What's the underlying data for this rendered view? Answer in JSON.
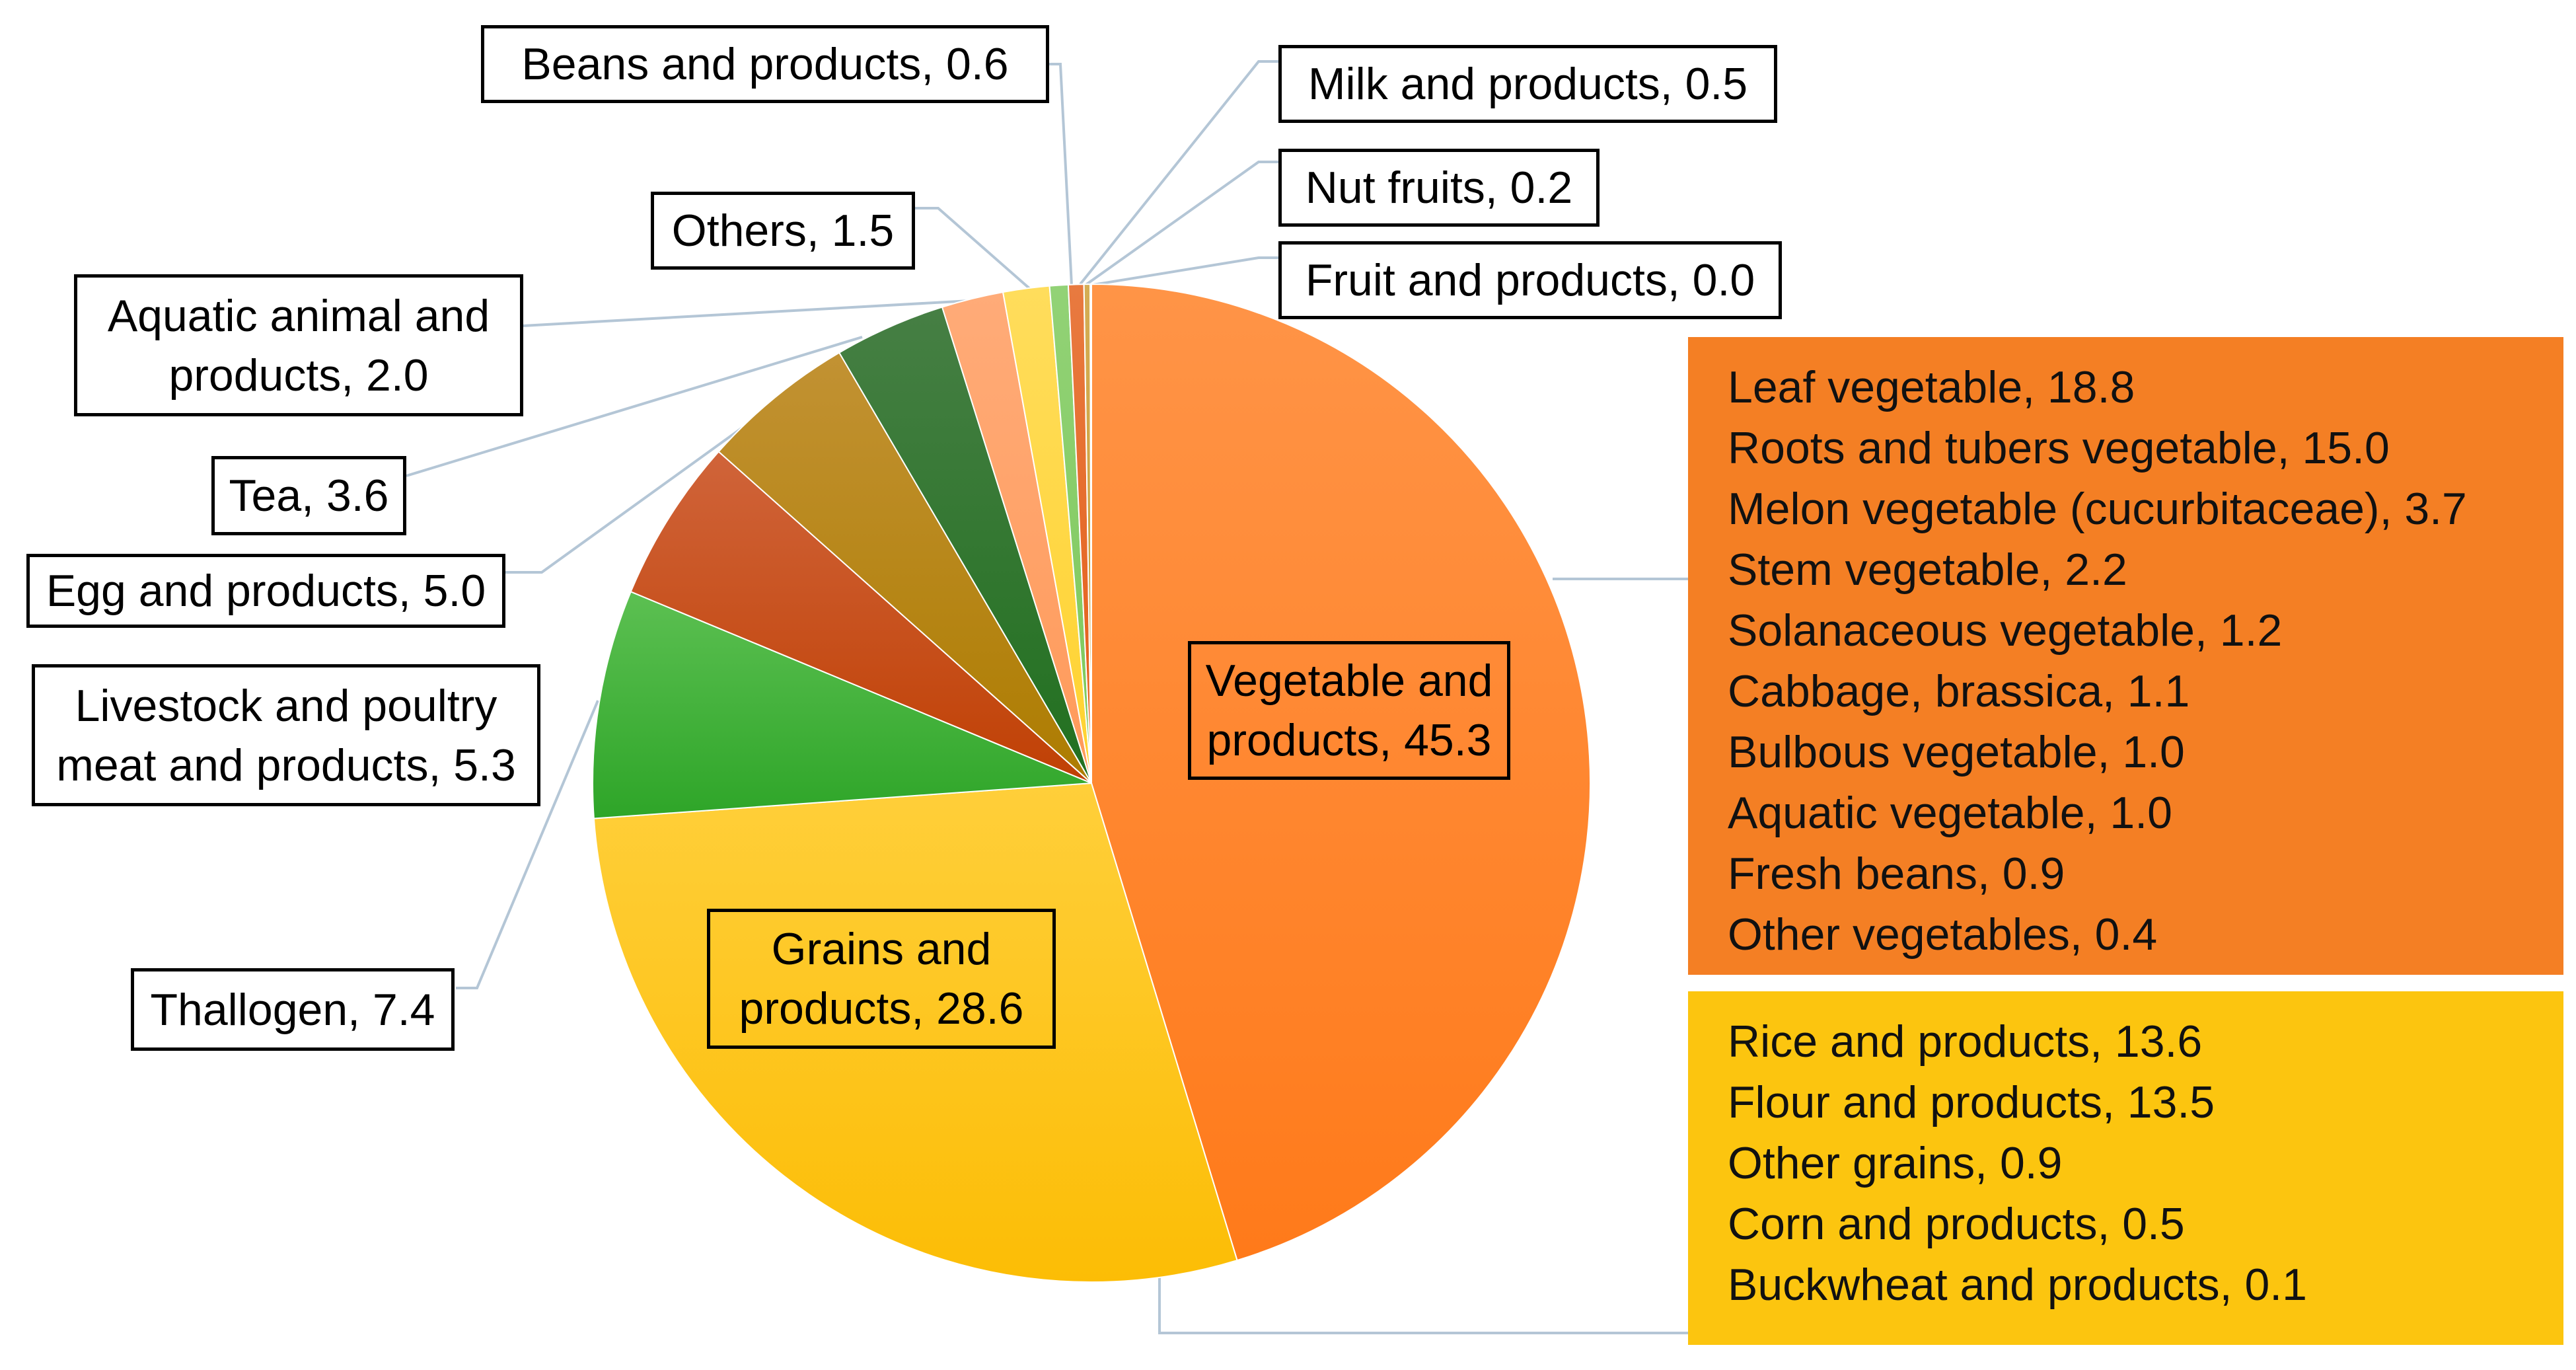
{
  "chart_data": {
    "type": "pie",
    "title": "",
    "start_angle_deg": 0,
    "direction": "clockwise",
    "slices": [
      {
        "label": "Vegetable and products",
        "value": 45.3,
        "color": "#ff7a1a",
        "light": "#ff9447"
      },
      {
        "label": "Grains and products",
        "value": 28.6,
        "color": "#fcbd05",
        "light": "#ffcf3a"
      },
      {
        "label": "Thallogen",
        "value": 7.4,
        "color": "#2ea528",
        "light": "#5cc052"
      },
      {
        "label": "Livestock and poultry meat and products",
        "value": 5.3,
        "color": "#c04004",
        "light": "#d0643a"
      },
      {
        "label": "Egg and products",
        "value": 5.0,
        "color": "#ad7c00",
        "light": "#c29233"
      },
      {
        "label": "Tea",
        "value": 3.6,
        "color": "#21701f",
        "light": "#467f44"
      },
      {
        "label": "Aquatic animal and products",
        "value": 2.0,
        "color": "#ff9a5a",
        "light": "#ffab78"
      },
      {
        "label": "Others",
        "value": 1.5,
        "color": "#ffd22f",
        "light": "#ffdd5c"
      },
      {
        "label": "Beans and products",
        "value": 0.6,
        "color": "#7cc85a",
        "light": "#92d276"
      },
      {
        "label": "Milk and products",
        "value": 0.5,
        "color": "#e45e16",
        "light": "#e87a40"
      },
      {
        "label": "Nut fruits",
        "value": 0.2,
        "color": "#c79a2c",
        "light": "#d4ad55"
      },
      {
        "label": "Fruit and products",
        "value": 0.04,
        "color": "#3b8a30",
        "light": "#5ea055"
      }
    ]
  },
  "labels": {
    "vegetable": "Vegetable and products, 45.3",
    "grains": "Grains and products, 28.6",
    "thallogen": "Thallogen, 7.4",
    "livestock": "Livestock and poultry meat and products, 5.3",
    "egg": "Egg and products, 5.0",
    "tea": "Tea, 3.6",
    "aquatic": "Aquatic animal and products, 2.0",
    "others": "Others, 1.5",
    "beans": "Beans and products, 0.6",
    "milk": "Milk and products, 0.5",
    "nut": "Nut fruits, 0.2",
    "fruit": "Fruit and products, 0.0"
  },
  "vegetable_breakdown": [
    "Leaf vegetable, 18.8",
    "Roots and tubers vegetable, 15.0",
    "Melon vegetable (cucurbitaceae), 3.7",
    "Stem vegetable, 2.2",
    "Solanaceous vegetable, 1.2",
    "Cabbage, brassica, 1.1",
    "Bulbous vegetable, 1.0",
    "Aquatic vegetable, 1.0",
    "Fresh beans, 0.9",
    "Other vegetables, 0.4"
  ],
  "grain_breakdown": [
    "Rice and products, 13.6",
    "Flour and products, 13.5",
    "Other grains, 0.9",
    "Corn and products, 0.5",
    "Buckwheat and products, 0.1"
  ],
  "colors": {
    "vegetable_box": "#f47f24",
    "grain_box": "#fcc50f",
    "leader_line": "#b4c6d6"
  }
}
